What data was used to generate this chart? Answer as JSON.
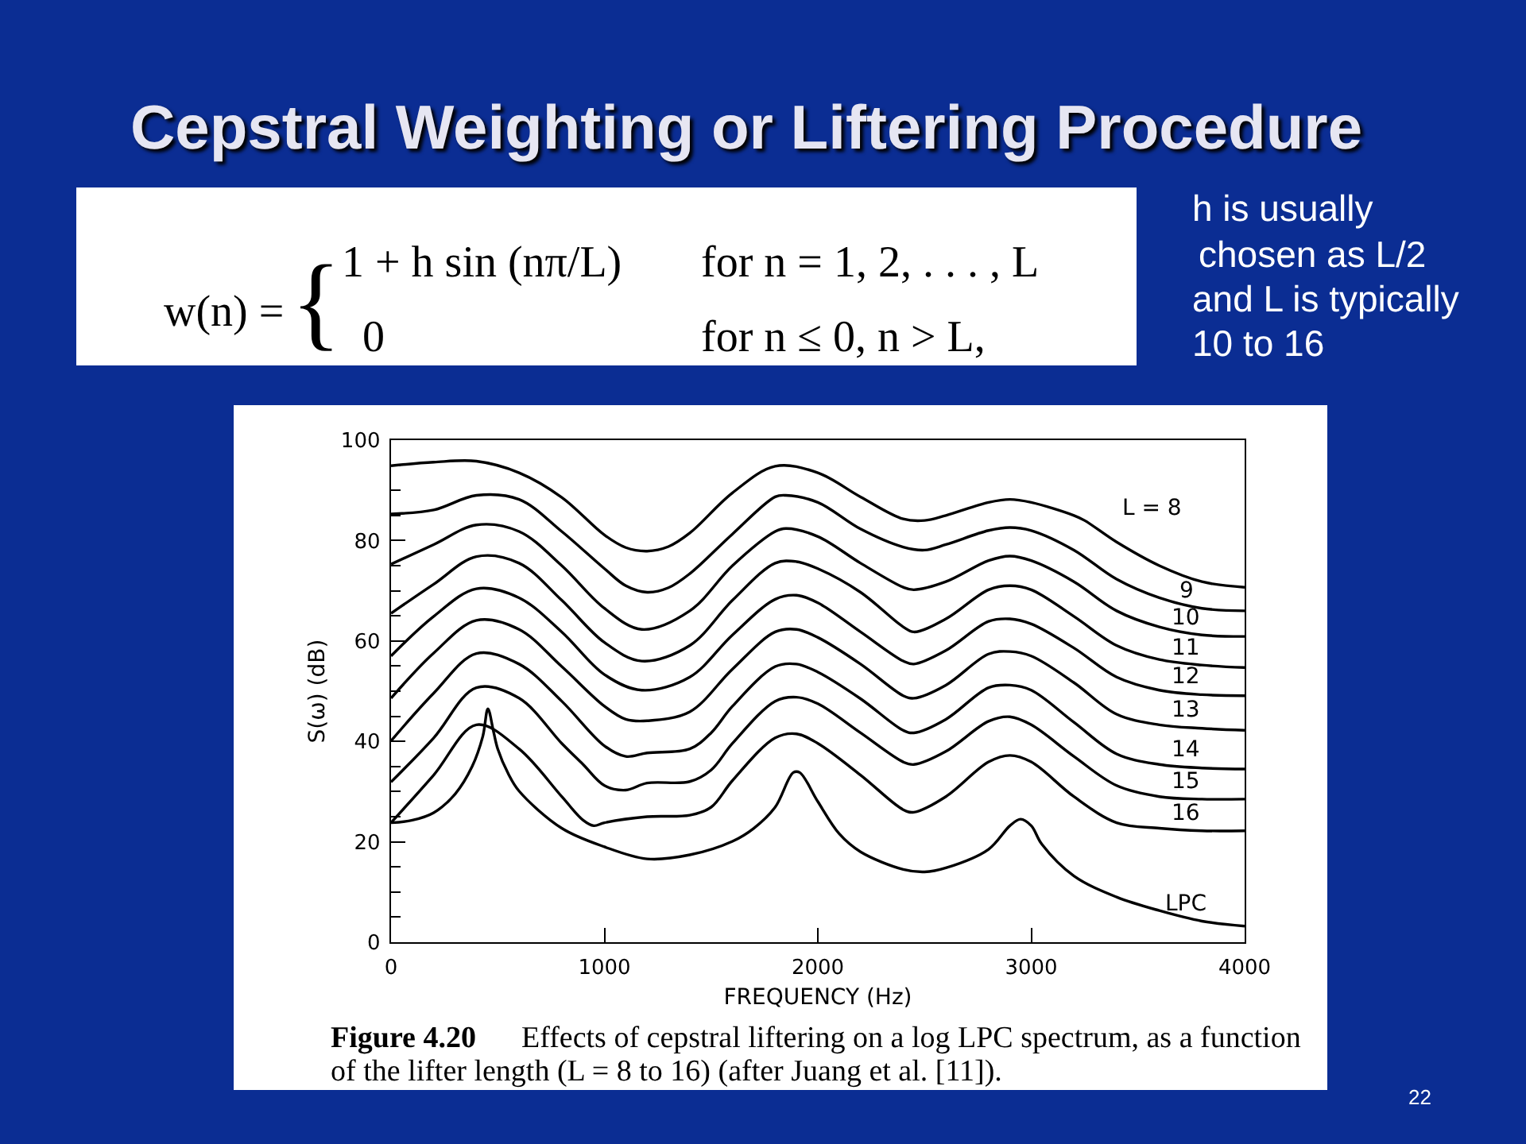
{
  "chart_data": {
    "type": "line",
    "title": "Cepstral Weighting or Liftering Procedure",
    "xlabel": "FREQUENCY (Hz)",
    "ylabel": "S(ω) (dB)",
    "xlim": [
      0,
      4000
    ],
    "ylim": [
      0,
      100
    ],
    "xticks": [
      0,
      1000,
      2000,
      3000,
      4000
    ],
    "yticks": [
      0,
      {
        "value": 5,
        "label": null
      },
      {
        "value": 10,
        "label": null
      },
      {
        "value": 15,
        "label": null
      },
      20,
      {
        "value": 25,
        "label": null
      },
      {
        "value": 30,
        "label": null
      },
      {
        "value": 35,
        "label": null
      },
      40,
      {
        "value": 45,
        "label": null
      },
      {
        "value": 50,
        "label": null
      },
      {
        "value": 55,
        "label": null
      },
      60,
      {
        "value": 65,
        "label": null
      },
      {
        "value": 70,
        "label": null
      },
      {
        "value": 75,
        "label": null
      },
      80,
      {
        "value": 85,
        "label": null
      },
      {
        "value": 90,
        "label": null
      },
      {
        "value": 95,
        "label": null
      },
      100
    ],
    "grid": false,
    "line_style": "solid",
    "series": [
      {
        "name": "L = 8",
        "color": "#000000",
        "x": [
          0,
          200,
          400,
          600,
          800,
          1000,
          1100,
          1200,
          1300,
          1400,
          1600,
          1800,
          2000,
          2200,
          2400,
          2500,
          2600,
          2800,
          2900,
          3000,
          3200,
          3250,
          3400,
          3600,
          3800,
          4000
        ],
        "values": [
          94.9,
          95.6,
          95.8,
          93.5,
          88.6,
          81.1,
          78.6,
          77.9,
          78.8,
          81.5,
          89.5,
          94.8,
          93.5,
          88.7,
          84.3,
          84.0,
          85.0,
          87.6,
          88.2,
          87.6,
          85.0,
          84.0,
          79.7,
          75.0,
          71.8,
          70.7
        ]
      },
      {
        "name": "9",
        "color": "#000000",
        "x": [
          0,
          200,
          400,
          600,
          800,
          1000,
          1100,
          1200,
          1300,
          1400,
          1600,
          1800,
          1850,
          2000,
          2200,
          2400,
          2500,
          2600,
          2800,
          2900,
          3000,
          3200,
          3400,
          3600,
          3800,
          4000
        ],
        "values": [
          85.3,
          86.1,
          89.0,
          88.2,
          81.8,
          74.4,
          71.0,
          69.7,
          70.6,
          73.4,
          81.3,
          88.7,
          89.0,
          87.6,
          82.3,
          78.7,
          78.1,
          79.2,
          82.0,
          82.6,
          82.0,
          78.1,
          72.3,
          68.6,
          66.5,
          66.0
        ]
      },
      {
        "name": "10",
        "color": "#000000",
        "x": [
          0,
          200,
          400,
          600,
          800,
          1000,
          1175,
          1400,
          1600,
          1800,
          1850,
          2000,
          2200,
          2400,
          2450,
          2600,
          2800,
          2900,
          3000,
          3200,
          3400,
          3600,
          3800,
          4000
        ],
        "values": [
          75.3,
          79.2,
          83.1,
          81.8,
          75.0,
          66.5,
          62.3,
          66.0,
          75.0,
          81.8,
          82.4,
          80.8,
          75.5,
          70.7,
          70.2,
          71.8,
          76.0,
          76.9,
          76.0,
          71.8,
          66.0,
          62.8,
          61.2,
          60.9
        ]
      },
      {
        "name": "11",
        "color": "#000000",
        "x": [
          0,
          200,
          400,
          600,
          800,
          1000,
          1175,
          1400,
          1600,
          1800,
          1900,
          2000,
          2200,
          2400,
          2450,
          2600,
          2800,
          2900,
          3000,
          3200,
          3400,
          3600,
          3800,
          4000
        ],
        "values": [
          65.5,
          71.3,
          76.8,
          75.5,
          68.1,
          59.7,
          56.0,
          59.1,
          68.1,
          75.5,
          75.8,
          74.4,
          69.7,
          62.8,
          61.8,
          64.4,
          70.2,
          71.0,
          70.2,
          64.9,
          59.1,
          56.3,
          55.2,
          54.7
        ]
      },
      {
        "name": "12",
        "color": "#000000",
        "x": [
          0,
          200,
          400,
          600,
          800,
          1000,
          1175,
          1400,
          1600,
          1800,
          1900,
          2000,
          2200,
          2400,
          2450,
          2600,
          2800,
          2900,
          3000,
          3200,
          3400,
          3600,
          3800,
          4000
        ],
        "values": [
          57.0,
          64.9,
          70.4,
          68.6,
          61.8,
          53.3,
          50.2,
          52.8,
          61.2,
          68.3,
          69.1,
          67.6,
          61.8,
          56.0,
          55.4,
          58.1,
          63.9,
          64.4,
          63.4,
          58.6,
          52.8,
          50.2,
          49.3,
          49.1
        ]
      },
      {
        "name": "13",
        "color": "#000000",
        "x": [
          0,
          200,
          400,
          600,
          800,
          1000,
          1100,
          1200,
          1400,
          1600,
          1800,
          1900,
          2000,
          2200,
          2400,
          2450,
          2600,
          2800,
          2900,
          3000,
          3200,
          3400,
          3600,
          3800,
          4000
        ],
        "values": [
          48.6,
          57.6,
          64.1,
          62.3,
          54.9,
          47.0,
          44.4,
          44.1,
          45.9,
          54.4,
          61.8,
          62.3,
          60.7,
          55.4,
          49.1,
          48.6,
          51.2,
          57.4,
          57.9,
          57.0,
          51.7,
          45.4,
          43.3,
          42.6,
          42.2
        ]
      },
      {
        "name": "14",
        "color": "#000000",
        "x": [
          0,
          200,
          400,
          600,
          800,
          1000,
          1100,
          1200,
          1400,
          1500,
          1600,
          1800,
          1900,
          2000,
          2200,
          2400,
          2450,
          2600,
          2800,
          2900,
          3000,
          3200,
          3400,
          3600,
          3800,
          4000
        ],
        "values": [
          40.1,
          49.6,
          57.5,
          55.4,
          48.0,
          39.1,
          37.0,
          37.7,
          38.5,
          41.7,
          47.0,
          54.9,
          55.4,
          53.8,
          48.5,
          42.2,
          41.7,
          44.4,
          50.7,
          51.2,
          50.2,
          43.8,
          37.5,
          35.4,
          34.7,
          34.5
        ]
      },
      {
        "name": "15",
        "color": "#000000",
        "x": [
          0,
          200,
          400,
          600,
          800,
          900,
          1000,
          1100,
          1200,
          1400,
          1500,
          1600,
          1800,
          1900,
          2000,
          2200,
          2400,
          2450,
          2600,
          2800,
          2900,
          3000,
          3200,
          3400,
          3600,
          3800,
          4000
        ],
        "values": [
          31.9,
          40.7,
          50.7,
          48.6,
          39.6,
          35.4,
          31.2,
          30.3,
          31.7,
          32.0,
          34.3,
          39.6,
          48.0,
          48.8,
          47.5,
          41.7,
          35.9,
          35.4,
          38.0,
          44.0,
          44.9,
          43.3,
          37.0,
          31.2,
          29.0,
          28.5,
          28.5
        ]
      },
      {
        "name": "16",
        "color": "#000000",
        "x": [
          0,
          200,
          400,
          600,
          800,
          900,
          950,
          1000,
          1200,
          1400,
          1500,
          1600,
          1800,
          1900,
          2000,
          2200,
          2400,
          2450,
          2600,
          2800,
          2900,
          3000,
          3200,
          3400,
          3600,
          3800,
          4000
        ],
        "values": [
          23.8,
          33.3,
          43.3,
          38.5,
          29.0,
          24.3,
          23.2,
          23.8,
          25.0,
          25.3,
          26.9,
          32.2,
          40.7,
          41.5,
          39.6,
          33.3,
          26.4,
          25.9,
          29.0,
          35.9,
          37.2,
          35.9,
          29.0,
          23.8,
          22.7,
          22.2,
          22.2
        ]
      },
      {
        "name": "LPC",
        "color": "#000000",
        "x": [
          0,
          100,
          200,
          300,
          380,
          430,
          454,
          480,
          500,
          550,
          600,
          800,
          1000,
          1200,
          1400,
          1600,
          1700,
          1800,
          1885,
          1915,
          2000,
          2100,
          2200,
          2400,
          2500,
          2600,
          2800,
          2900,
          2950,
          3000,
          3050,
          3200,
          3400,
          3600,
          3800,
          4000
        ],
        "values": [
          23.8,
          24.3,
          25.8,
          29.5,
          35.0,
          41.0,
          46.5,
          42.0,
          38.5,
          33.5,
          30.1,
          22.7,
          19.0,
          16.6,
          17.4,
          20.1,
          22.7,
          26.9,
          33.8,
          33.8,
          28.0,
          21.6,
          18.0,
          14.5,
          14.0,
          14.8,
          18.5,
          23.2,
          24.5,
          23.2,
          19.5,
          13.2,
          9.0,
          6.3,
          4.2,
          3.2
        ]
      }
    ],
    "annotations": [
      "w(n) =",
      "{",
      "1 + h sin (nπ/L)",
      "for n = 1, 2, . . . , L",
      "0",
      "for n ≤ 0, n > L,",
      "h is usually\nchosen as L/2\nand L is typically\n10 to 16",
      "Figure 4.20",
      "Effects of cepstral liftering on a log LPC spectrum, as a function\nof the lifter length (L = 8 to 16) (after Juang et al. [11]).",
      "22"
    ]
  }
}
